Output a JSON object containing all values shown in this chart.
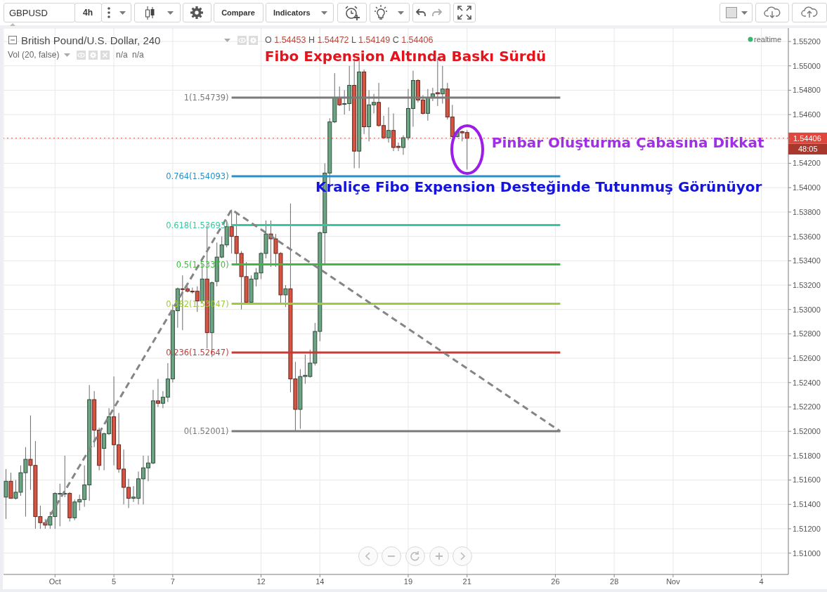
{
  "chart_data": {
    "type": "candlestick",
    "title": "British Pound/U.S. Dollar, 240",
    "subtitle": "O 1.54453 H 1.54472 L 1.54149 C 1.54406",
    "annotations": [
      "Fibo Expension Altında Baskı Sürdü",
      "Pinbar Oluşturma Çabasına Dikkat",
      "Kraliçe Fibo Expension Desteğinde Tutunmuş Görünüyor",
      "GBPUSD",
      "4h",
      "Compare",
      "Indicators",
      "Vol (20, false)",
      "n/a",
      "n/a",
      "realtime",
      "48:05"
    ],
    "categories": [
      null,
      null,
      null,
      null,
      null,
      null,
      null,
      null,
      null,
      null,
      "Oct",
      null,
      null,
      null,
      null,
      null,
      null,
      null,
      null,
      null,
      null,
      null,
      "5",
      null,
      null,
      null,
      null,
      null,
      null,
      null,
      null,
      null,
      null,
      null,
      "7",
      null,
      null,
      null,
      null,
      null,
      null,
      null,
      null,
      null,
      null,
      null,
      null,
      null,
      null,
      null,
      null,
      null,
      "12",
      null,
      null,
      null,
      null,
      null,
      null,
      null,
      null,
      null,
      null,
      null,
      "14",
      null,
      null,
      null,
      null,
      null,
      null,
      null,
      null,
      null,
      null,
      null,
      null,
      null,
      null,
      null,
      null,
      null,
      "19",
      null,
      null,
      null,
      null,
      null,
      null,
      null,
      null,
      null,
      null,
      null,
      "21",
      null,
      null,
      null,
      null,
      null,
      null,
      null,
      null,
      null,
      null,
      null,
      null,
      null,
      null,
      null,
      null,
      null,
      "26",
      null,
      null,
      null,
      null,
      null,
      null,
      null,
      null,
      null,
      null,
      null,
      "28",
      null,
      null,
      null,
      null,
      null,
      null,
      null,
      null,
      null,
      null,
      null,
      "Nov",
      null,
      null,
      null,
      null,
      null,
      null,
      null,
      null,
      null,
      null,
      null,
      null,
      null,
      null,
      null,
      null,
      null,
      "4",
      null,
      null,
      null,
      null,
      null
    ],
    "ohlc": [
      [
        1.5146,
        1.5169,
        1.5128,
        1.5159
      ],
      [
        1.5159,
        1.5166,
        1.5145,
        1.5145
      ],
      [
        1.5145,
        1.516,
        1.5144,
        1.515
      ],
      [
        1.515,
        1.5172,
        1.5147,
        1.5166
      ],
      [
        1.5166,
        1.5187,
        1.513,
        1.5177
      ],
      [
        1.5177,
        1.5213,
        1.5152,
        1.5172
      ],
      [
        1.5172,
        1.5192,
        1.512,
        1.513
      ],
      [
        1.513,
        1.5139,
        1.512,
        1.5125
      ],
      [
        1.5125,
        1.5128,
        1.512,
        1.5123
      ],
      [
        1.5123,
        1.5134,
        1.512,
        1.513
      ],
      [
        1.513,
        1.515,
        1.512,
        1.5149
      ],
      [
        1.5149,
        1.5157,
        1.5122,
        1.5149
      ],
      [
        1.5149,
        1.518,
        1.5146,
        1.5149
      ],
      [
        1.5149,
        1.515,
        1.5126,
        1.5129
      ],
      [
        1.5129,
        1.5144,
        1.5127,
        1.5142
      ],
      [
        1.5142,
        1.5148,
        1.5135,
        1.5144
      ],
      [
        1.5144,
        1.5172,
        1.5138,
        1.5156
      ],
      [
        1.5156,
        1.5238,
        1.5143,
        1.5226
      ],
      [
        1.5226,
        1.5233,
        1.5187,
        1.5201
      ],
      [
        1.5201,
        1.5203,
        1.5168,
        1.5172
      ],
      [
        1.5186,
        1.5199,
        1.5168,
        1.5198
      ],
      [
        1.5198,
        1.5219,
        1.5197,
        1.5212
      ],
      [
        1.5212,
        1.5245,
        1.5172,
        1.5189
      ],
      [
        1.5189,
        1.5215,
        1.5166,
        1.5169
      ],
      [
        1.5169,
        1.5185,
        1.514,
        1.5154
      ],
      [
        1.5154,
        1.5161,
        1.5137,
        1.5145
      ],
      [
        1.5145,
        1.5155,
        1.5142,
        1.5146
      ],
      [
        1.5145,
        1.5167,
        1.514,
        1.5161
      ],
      [
        1.5161,
        1.518,
        1.514,
        1.517
      ],
      [
        1.517,
        1.518,
        1.5159,
        1.5174
      ],
      [
        1.5174,
        1.5234,
        1.5173,
        1.5225
      ],
      [
        1.5225,
        1.5243,
        1.522,
        1.5223
      ],
      [
        1.5223,
        1.5233,
        1.5219,
        1.5228
      ],
      [
        1.5228,
        1.5256,
        1.5224,
        1.5243
      ],
      [
        1.5243,
        1.5304,
        1.524,
        1.5299
      ],
      [
        1.5299,
        1.5318,
        1.5285,
        1.5317
      ],
      [
        1.5317,
        1.5328,
        1.5283,
        1.5317
      ],
      [
        1.5317,
        1.5319,
        1.5314,
        1.5315
      ],
      [
        1.5315,
        1.5318,
        1.5313,
        1.5315
      ],
      [
        1.5315,
        1.5319,
        1.5298,
        1.5307
      ],
      [
        1.5307,
        1.5337,
        1.5305,
        1.5325
      ],
      [
        1.5325,
        1.5369,
        1.5268,
        1.5281
      ],
      [
        1.5281,
        1.5323,
        1.5261,
        1.5322
      ],
      [
        1.5323,
        1.5355,
        1.5319,
        1.5343
      ],
      [
        1.5343,
        1.536,
        1.5342,
        1.5353
      ],
      [
        1.5353,
        1.5373,
        1.5351,
        1.5368
      ],
      [
        1.5368,
        1.5382,
        1.5346,
        1.536
      ],
      [
        1.536,
        1.5379,
        1.5337,
        1.5346
      ],
      [
        1.5346,
        1.5348,
        1.53,
        1.5327
      ],
      [
        1.5327,
        1.5339,
        1.5305,
        1.5306
      ],
      [
        1.5306,
        1.5328,
        1.5305,
        1.5325
      ],
      [
        1.5325,
        1.5334,
        1.5319,
        1.533
      ],
      [
        1.533,
        1.5347,
        1.5325,
        1.5346
      ],
      [
        1.5346,
        1.5373,
        1.5342,
        1.5362
      ],
      [
        1.5362,
        1.5373,
        1.5335,
        1.5358
      ],
      [
        1.5358,
        1.5362,
        1.5335,
        1.5346
      ],
      [
        1.5346,
        1.5347,
        1.5305,
        1.5312
      ],
      [
        1.5312,
        1.532,
        1.5302,
        1.5317
      ],
      [
        1.5317,
        1.5387,
        1.5232,
        1.5243
      ],
      [
        1.5243,
        1.5257,
        1.52,
        1.5218
      ],
      [
        1.5218,
        1.5251,
        1.5202,
        1.5245
      ],
      [
        1.5245,
        1.5263,
        1.5239,
        1.5246
      ],
      [
        1.5245,
        1.5267,
        1.5244,
        1.5256
      ],
      [
        1.5256,
        1.5289,
        1.5254,
        1.5282
      ],
      [
        1.5282,
        1.5364,
        1.5274,
        1.5363
      ],
      [
        1.5363,
        1.542,
        1.5337,
        1.5412
      ],
      [
        1.5412,
        1.5457,
        1.5403,
        1.5454
      ],
      [
        1.5454,
        1.5494,
        1.5453,
        1.5474
      ],
      [
        1.5474,
        1.5483,
        1.5467,
        1.5468
      ],
      [
        1.5469,
        1.548,
        1.546,
        1.5469
      ],
      [
        1.5469,
        1.55,
        1.5463,
        1.5484
      ],
      [
        1.5484,
        1.5506,
        1.5416,
        1.543
      ],
      [
        1.543,
        1.5506,
        1.5416,
        1.5495
      ],
      [
        1.5495,
        1.5497,
        1.5444,
        1.545
      ],
      [
        1.545,
        1.548,
        1.5438,
        1.5468
      ],
      [
        1.5468,
        1.5477,
        1.5461,
        1.547
      ],
      [
        1.547,
        1.5486,
        1.545,
        1.5451
      ],
      [
        1.5451,
        1.5459,
        1.544,
        1.5441
      ],
      [
        1.5441,
        1.5466,
        1.5437,
        1.5447
      ],
      [
        1.5447,
        1.5461,
        1.543,
        1.5433
      ],
      [
        1.5434,
        1.5437,
        1.543,
        1.5433
      ],
      [
        1.5433,
        1.5443,
        1.5427,
        1.5441
      ],
      [
        1.5441,
        1.5481,
        1.5439,
        1.5465
      ],
      [
        1.5465,
        1.5496,
        1.545,
        1.5488
      ],
      [
        1.5488,
        1.5489,
        1.547,
        1.5472
      ],
      [
        1.5472,
        1.5476,
        1.546,
        1.5461
      ],
      [
        1.5461,
        1.5481,
        1.5455,
        1.5474
      ],
      [
        1.5474,
        1.5482,
        1.5471,
        1.5477
      ],
      [
        1.5478,
        1.5506,
        1.5467,
        1.5477
      ],
      [
        1.5477,
        1.55,
        1.5469,
        1.5481
      ],
      [
        1.5481,
        1.5486,
        1.5456,
        1.5458
      ],
      [
        1.5458,
        1.5468,
        1.5441,
        1.5442
      ],
      [
        1.5442,
        1.5447,
        1.5441,
        1.5446
      ],
      [
        1.5446,
        1.5447,
        1.5438,
        1.5445
      ],
      [
        1.54453,
        1.54472,
        1.54149,
        1.54406
      ],
      null,
      null,
      null,
      null,
      null,
      null,
      null,
      null,
      null,
      null,
      null,
      null,
      null,
      null,
      null,
      null,
      null,
      null,
      null,
      null,
      null,
      null,
      null,
      null,
      null,
      null,
      null,
      null,
      null,
      null,
      null,
      null,
      null,
      null,
      null,
      null,
      null,
      null,
      null,
      null,
      null,
      null,
      null,
      null,
      null,
      null,
      null,
      null,
      null,
      null,
      null,
      null,
      null,
      null,
      null,
      null,
      null,
      null,
      null,
      null,
      null,
      null,
      null,
      null,
      null
    ],
    "colors": [
      "#6ba583",
      "#d75442",
      "#6ba583",
      "#6ba583",
      "#6ba583",
      "#d75442",
      "#d75442",
      "#d75442",
      "#d75442",
      "#6ba583",
      "#6ba583",
      "#6ba583",
      "#6ba583",
      "#d75442",
      "#6ba583",
      "#6ba583",
      "#6ba583",
      "#6ba583",
      "#d75442",
      "#d75442",
      "#6ba583",
      "#6ba583",
      "#d75442",
      "#d75442",
      "#d75442",
      "#d75442",
      "#6ba583",
      "#6ba583",
      "#6ba583",
      "#6ba583",
      "#6ba583",
      "#d75442",
      "#6ba583",
      "#6ba583",
      "#6ba583",
      "#6ba583",
      "#d75442",
      "#d75442",
      "#d75442",
      "#d75442",
      "#6ba583",
      "#d75442",
      "#6ba583",
      "#6ba583",
      "#6ba583",
      "#6ba583",
      "#d75442",
      "#d75442",
      "#d75442",
      "#d75442",
      "#6ba583",
      "#6ba583",
      "#6ba583",
      "#6ba583",
      "#d75442",
      "#d75442",
      "#d75442",
      "#6ba583",
      "#d75442",
      "#d75442",
      "#6ba583",
      "#6ba583",
      "#6ba583",
      "#6ba583",
      "#6ba583",
      "#6ba583",
      "#6ba583",
      "#6ba583",
      "#d75442",
      "#6ba583",
      "#6ba583",
      "#d75442",
      "#6ba583",
      "#d75442",
      "#6ba583",
      "#6ba583",
      "#d75442",
      "#d75442",
      "#6ba583",
      "#d75442",
      "#d75442",
      "#6ba583",
      "#6ba583",
      "#6ba583",
      "#d75442",
      "#d75442",
      "#6ba583",
      "#6ba583",
      "#d75442",
      "#6ba583",
      "#d75442",
      "#d75442",
      "#6ba583",
      "#d75442",
      "#d75442",
      null,
      null,
      null,
      null,
      null,
      null,
      null,
      null,
      null,
      null,
      null,
      null,
      null,
      null,
      null,
      null,
      null,
      null,
      null,
      null,
      null,
      null,
      null,
      null,
      null,
      null,
      null,
      null,
      null,
      null,
      null,
      null,
      null,
      null,
      null,
      null,
      null,
      null,
      null,
      null,
      null,
      null,
      null,
      null,
      null,
      null,
      null,
      null,
      null,
      null,
      null,
      null,
      null,
      null,
      null,
      null,
      null,
      null,
      null,
      null,
      null,
      null,
      null,
      null,
      null
    ],
    "series": [
      {
        "type": "line",
        "color": "#858585",
        "line_style": "dashed",
        "values": [
          null,
          null,
          null,
          null,
          null,
          null,
          null,
          null,
          1.5124,
          null,
          null,
          null,
          null,
          null,
          null,
          null,
          null,
          null,
          null,
          null,
          null,
          null,
          null,
          null,
          null,
          null,
          null,
          null,
          null,
          null,
          null,
          null,
          null,
          null,
          null,
          null,
          null,
          null,
          null,
          null,
          null,
          null,
          null,
          null,
          null,
          null,
          1.5382,
          null,
          null,
          null,
          null,
          null,
          null,
          null,
          null,
          null,
          null,
          null,
          null,
          null,
          null,
          null,
          null,
          null,
          null,
          null,
          null,
          null,
          null,
          null,
          null,
          null,
          null,
          null,
          null,
          null,
          null,
          null,
          null,
          null,
          null,
          null,
          null,
          null,
          null,
          null,
          null,
          null,
          null,
          null,
          null,
          null,
          null,
          null,
          null,
          null,
          null,
          null,
          null,
          null,
          null,
          null,
          null,
          null,
          null,
          null,
          null,
          null,
          null,
          null,
          null,
          null,
          null,
          1.52,
          null,
          null,
          null,
          null,
          null,
          null,
          null,
          null,
          null,
          null,
          null,
          null,
          null,
          null,
          null,
          null,
          null,
          null,
          null,
          null,
          null,
          null,
          null,
          null,
          null,
          null,
          null,
          null,
          null,
          null,
          null,
          null,
          null,
          null,
          null,
          null,
          null,
          null,
          null,
          null,
          null,
          null,
          null,
          null,
          null,
          null
        ]
      }
    ],
    "ylim": [
      1.50825,
      1.5531
    ],
    "yticks": [
      {
        "value": 1.51,
        "label": "1.51000"
      },
      {
        "value": 1.512,
        "label": "1.51200"
      },
      {
        "value": 1.514,
        "label": "1.51400"
      },
      {
        "value": 1.516,
        "label": "1.51600"
      },
      {
        "value": 1.518,
        "label": "1.51800"
      },
      {
        "value": 1.52,
        "label": "1.52000"
      },
      {
        "value": 1.522,
        "label": "1.52200"
      },
      {
        "value": 1.524,
        "label": "1.52400"
      },
      {
        "value": 1.526,
        "label": "1.52600"
      },
      {
        "value": 1.528,
        "label": "1.52800"
      },
      {
        "value": 1.53,
        "label": "1.53000"
      },
      {
        "value": 1.532,
        "label": "1.53200"
      },
      {
        "value": 1.534,
        "label": "1.53400"
      },
      {
        "value": 1.536,
        "label": "1.53600"
      },
      {
        "value": 1.538,
        "label": "1.53800"
      },
      {
        "value": 1.54,
        "label": "1.54000"
      },
      {
        "value": 1.542,
        "label": "1.54200"
      },
      {
        "value": 1.544,
        "label": null
      },
      {
        "value": 1.546,
        "label": "1.54600"
      },
      {
        "value": 1.548,
        "label": "1.54800"
      },
      {
        "value": 1.55,
        "label": "1.55000"
      },
      {
        "value": 1.552,
        "label": "1.55200"
      }
    ],
    "ref_lines": [
      {
        "axis": "y",
        "value": 1.54739,
        "label": "1(1.54739)",
        "color": "#7a7a7a"
      },
      {
        "axis": "y",
        "value": 1.54093,
        "label": "0.764(1.54093)",
        "color": "#2a8fc6"
      },
      {
        "axis": "y",
        "value": 1.53693,
        "label": "0.618(1.53693)",
        "color": "#36c99f"
      },
      {
        "axis": "y",
        "value": 1.5337,
        "label": "0.5(1.53370)",
        "color": "#3dba3d"
      },
      {
        "axis": "y",
        "value": 1.53047,
        "label": "0.382(1.53047)",
        "color": "#9dcb3b"
      },
      {
        "axis": "y",
        "value": 1.52647,
        "label": "0.236(1.52647)",
        "color": "#c83a36"
      },
      {
        "axis": "y",
        "value": 1.52001,
        "label": "0(1.52001)",
        "color": "#7a7a7a"
      },
      {
        "axis": "y",
        "value": 1.54406,
        "label": "1.54406",
        "color": "#e0463c",
        "line_style": "dotted"
      }
    ],
    "grid": true
  }
}
